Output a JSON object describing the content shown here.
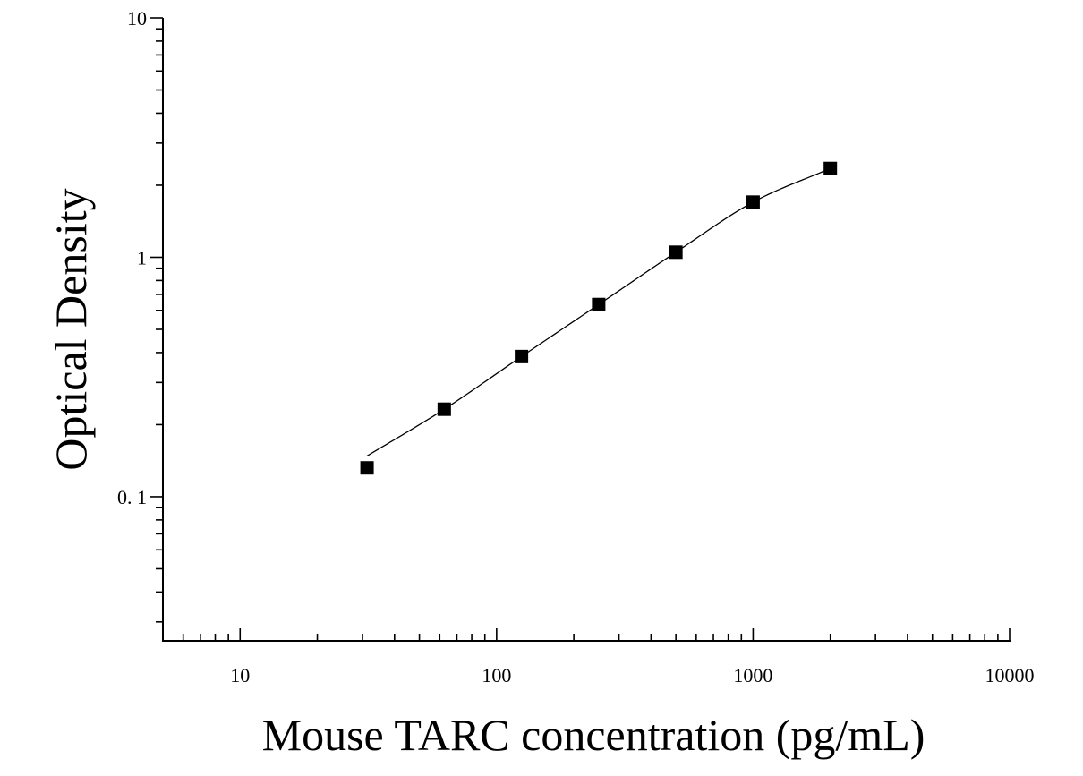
{
  "chart_data": {
    "type": "scatter",
    "xlabel": "Mouse TARC concentration (pg/mL)",
    "ylabel": "Optical Density",
    "xscale": "log",
    "yscale": "log",
    "xlim": [
      5,
      10000
    ],
    "ylim": [
      0.025,
      10
    ],
    "x_tick_labels": [
      "10",
      "100",
      "1000",
      "10000"
    ],
    "x_ticks": [
      10,
      100,
      1000,
      10000
    ],
    "y_tick_labels": [
      "0. 1",
      "1",
      "10"
    ],
    "y_ticks": [
      0.1,
      1,
      10
    ],
    "grid": false,
    "series": [
      {
        "marker": "square",
        "color": "#000000",
        "x": [
          31.25,
          62.5,
          125,
          250,
          500,
          1000,
          2000
        ],
        "y": [
          0.132,
          0.232,
          0.385,
          0.635,
          1.05,
          1.7,
          2.35
        ]
      }
    ],
    "fit_curve": {
      "type": "four-parameter logistic",
      "color": "#000000",
      "x_range": [
        31.25,
        2000
      ]
    }
  }
}
